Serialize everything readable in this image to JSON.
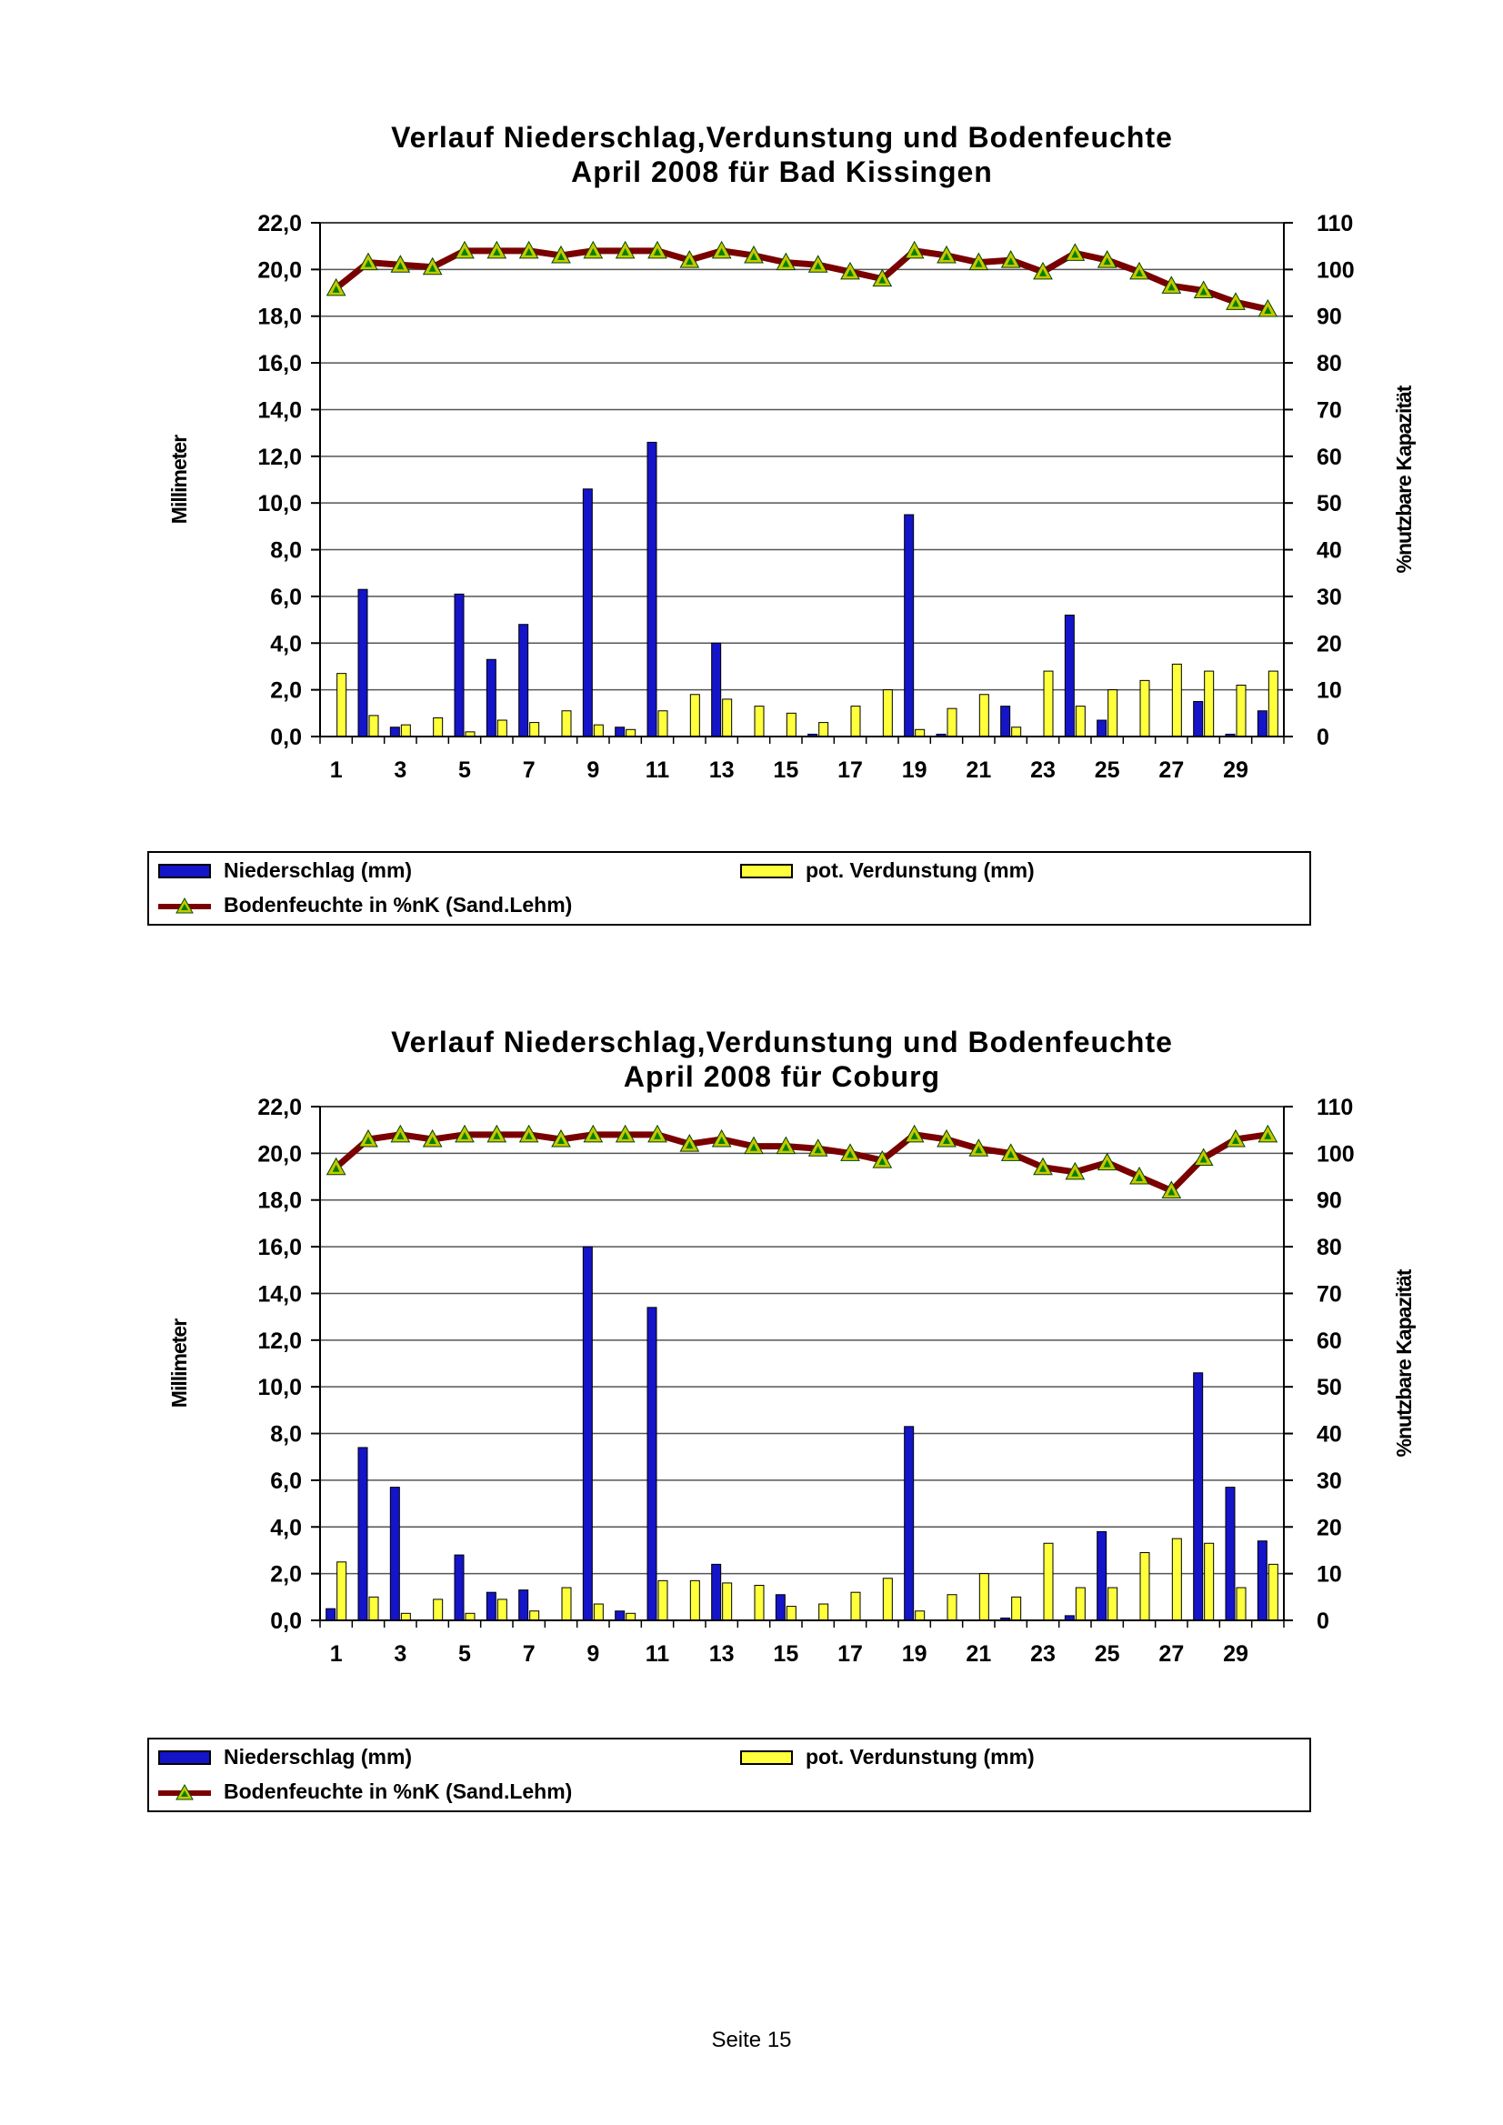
{
  "page": {
    "footer": "Seite 15"
  },
  "colors": {
    "precipitation": "#1414c8",
    "evaporation": "#ffff3c",
    "soil_line": "#7a0000",
    "marker_fill": "#c8c800",
    "marker_center": "#008000"
  },
  "legend": {
    "precipitation": "Niederschlag (mm)",
    "evaporation": "pot. Verdunstung (mm)",
    "soil": "Bodenfeuchte in %nK (Sand.Lehm)"
  },
  "chart_data": [
    {
      "type": "bar",
      "title": "Verlauf Niederschlag,Verdunstung und Bodenfeuchte",
      "subtitle": "April  2008 für Bad Kissingen",
      "ylabel": "Millimeter",
      "y2label": "%nutzbare Kapazität",
      "ylim": [
        0,
        22
      ],
      "y2lim": [
        0,
        110
      ],
      "yticks": [
        "0,0",
        "2,0",
        "4,0",
        "6,0",
        "8,0",
        "10,0",
        "12,0",
        "14,0",
        "16,0",
        "18,0",
        "20,0",
        "22,0"
      ],
      "y2ticks": [
        "0",
        "10",
        "20",
        "30",
        "40",
        "50",
        "60",
        "70",
        "80",
        "90",
        "100",
        "110"
      ],
      "xticks": [
        "1",
        "3",
        "5",
        "7",
        "9",
        "11",
        "13",
        "15",
        "17",
        "19",
        "21",
        "23",
        "25",
        "27",
        "29"
      ],
      "x": [
        1,
        2,
        3,
        4,
        5,
        6,
        7,
        8,
        9,
        10,
        11,
        12,
        13,
        14,
        15,
        16,
        17,
        18,
        19,
        20,
        21,
        22,
        23,
        24,
        25,
        26,
        27,
        28,
        29,
        30
      ],
      "grid": "horizontal",
      "legend_position": "bottom",
      "series": [
        {
          "name": "Niederschlag (mm)",
          "kind": "bar",
          "axis": "left",
          "values": [
            0,
            6.3,
            0.4,
            0,
            6.1,
            3.3,
            4.8,
            0,
            10.6,
            0.4,
            12.6,
            0,
            4.0,
            0,
            0,
            0.1,
            0,
            0,
            9.5,
            0.1,
            0,
            1.3,
            0,
            5.2,
            0.7,
            0,
            0,
            1.5,
            0.1,
            1.1
          ]
        },
        {
          "name": "pot. Verdunstung (mm)",
          "kind": "bar",
          "axis": "left",
          "values": [
            2.7,
            0.9,
            0.5,
            0.8,
            0.2,
            0.7,
            0.6,
            1.1,
            0.5,
            0.3,
            1.1,
            1.8,
            1.6,
            1.3,
            1.0,
            0.6,
            1.3,
            2.0,
            0.3,
            1.2,
            1.8,
            0.4,
            2.8,
            1.3,
            2.0,
            2.4,
            3.1,
            2.8,
            2.2,
            2.8
          ]
        },
        {
          "name": "Bodenfeuchte in %nK (Sand.Lehm)",
          "kind": "line",
          "axis": "right",
          "values": [
            96,
            101.5,
            101,
            100.5,
            104,
            104,
            104,
            103,
            104,
            104,
            104,
            102,
            104,
            103,
            101.5,
            101,
            99.5,
            98,
            104,
            103,
            101.5,
            102,
            99.5,
            103.5,
            102,
            99.5,
            96.5,
            95.5,
            93,
            91.5
          ]
        }
      ]
    },
    {
      "type": "bar",
      "title": "Verlauf Niederschlag,Verdunstung und Bodenfeuchte",
      "subtitle": "April 2008 für Coburg",
      "ylabel": "Millimeter",
      "y2label": "%nutzbare Kapazität",
      "ylim": [
        0,
        22
      ],
      "y2lim": [
        0,
        110
      ],
      "yticks": [
        "0,0",
        "2,0",
        "4,0",
        "6,0",
        "8,0",
        "10,0",
        "12,0",
        "14,0",
        "16,0",
        "18,0",
        "20,0",
        "22,0"
      ],
      "y2ticks": [
        "0",
        "10",
        "20",
        "30",
        "40",
        "50",
        "60",
        "70",
        "80",
        "90",
        "100",
        "110"
      ],
      "xticks": [
        "1",
        "3",
        "5",
        "7",
        "9",
        "11",
        "13",
        "15",
        "17",
        "19",
        "21",
        "23",
        "25",
        "27",
        "29"
      ],
      "x": [
        1,
        2,
        3,
        4,
        5,
        6,
        7,
        8,
        9,
        10,
        11,
        12,
        13,
        14,
        15,
        16,
        17,
        18,
        19,
        20,
        21,
        22,
        23,
        24,
        25,
        26,
        27,
        28,
        29,
        30
      ],
      "grid": "horizontal",
      "legend_position": "bottom",
      "series": [
        {
          "name": "Niederschlag (mm)",
          "kind": "bar",
          "axis": "left",
          "values": [
            0.5,
            7.4,
            5.7,
            0,
            2.8,
            1.2,
            1.3,
            0,
            16.0,
            0.4,
            13.4,
            0,
            2.4,
            0,
            1.1,
            0,
            0,
            0,
            8.3,
            0,
            0,
            0.1,
            0,
            0.2,
            3.8,
            0,
            0,
            10.6,
            5.7,
            3.4
          ]
        },
        {
          "name": "pot. Verdunstung (mm)",
          "kind": "bar",
          "axis": "left",
          "values": [
            2.5,
            1.0,
            0.3,
            0.9,
            0.3,
            0.9,
            0.4,
            1.4,
            0.7,
            0.3,
            1.7,
            1.7,
            1.6,
            1.5,
            0.6,
            0.7,
            1.2,
            1.8,
            0.4,
            1.1,
            2.0,
            1.0,
            3.3,
            1.4,
            1.4,
            2.9,
            3.5,
            3.3,
            1.4,
            2.4
          ]
        },
        {
          "name": "Bodenfeuchte in %nK (Sand.Lehm)",
          "kind": "line",
          "axis": "right",
          "values": [
            97,
            103,
            104,
            103,
            104,
            104,
            104,
            103,
            104,
            104,
            104,
            102,
            103,
            101.5,
            101.5,
            101,
            100,
            98.5,
            104,
            103,
            101,
            100,
            97,
            96,
            98,
            95,
            92,
            99,
            103,
            104
          ]
        }
      ]
    }
  ]
}
